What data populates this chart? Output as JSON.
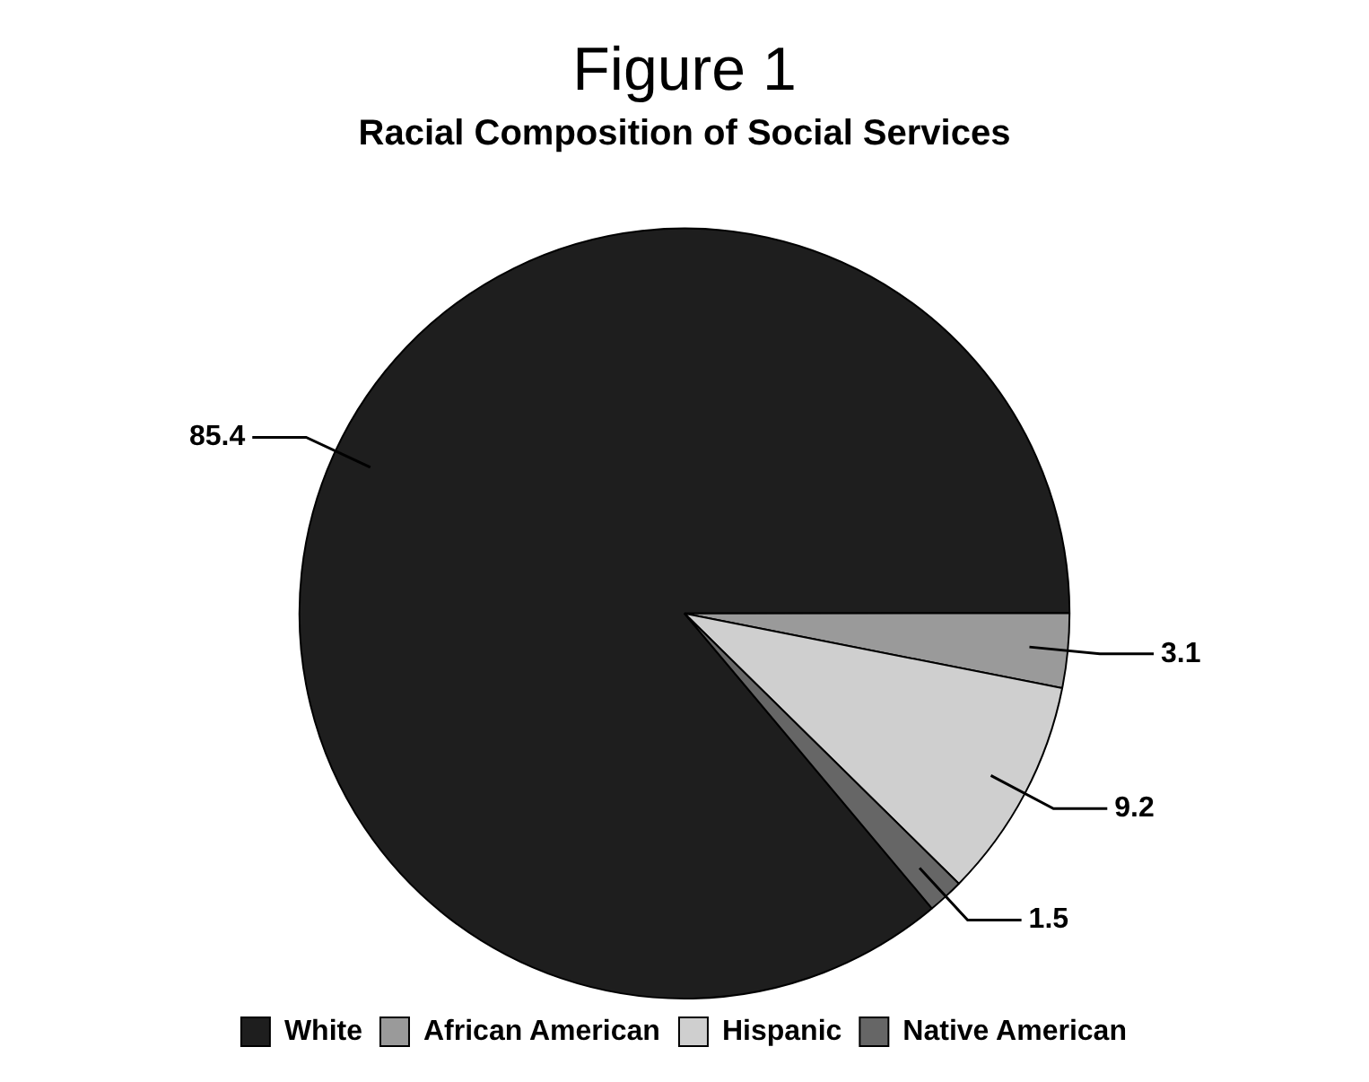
{
  "chart_data": {
    "type": "pie",
    "title": "Figure 1",
    "subtitle": "Racial Composition of Social Services",
    "categories": [
      "White",
      "African American",
      "Hispanic",
      "Native American"
    ],
    "values": [
      85.4,
      3.1,
      9.2,
      1.5
    ],
    "colors": [
      "#1e1e1e",
      "#9a9a9a",
      "#cfcfcf",
      "#666666"
    ],
    "data_labels": true,
    "legend": "bottom"
  }
}
